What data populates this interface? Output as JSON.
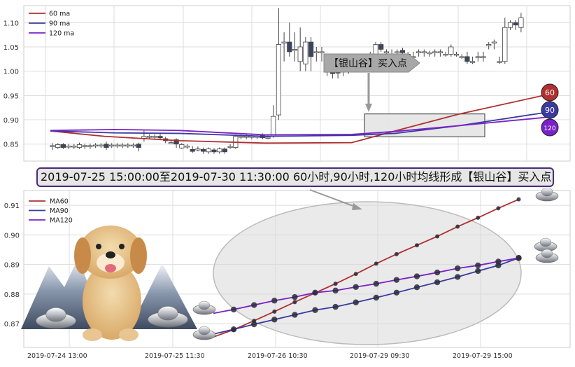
{
  "chart_data": [
    {
      "type": "candlestick",
      "title": "",
      "xlabel": "",
      "ylabel": "",
      "ylim": [
        0.815,
        1.135
      ],
      "yticks": [
        "0.85",
        "0.90",
        "0.95",
        "1.00",
        "1.05",
        "1.10"
      ],
      "grid": true,
      "legend_position": "top-left",
      "legend": [
        "60 ma",
        "90 ma",
        "120 ma"
      ],
      "colors": {
        "ma60": "#b03030",
        "ma90": "#3a3aa0",
        "ma120": "#7a22c8",
        "up_candle": "#ffffff",
        "down_candle": "#3a4660"
      },
      "candles": [
        {
          "o": 0.847,
          "c": 0.847,
          "h": 0.852,
          "l": 0.838,
          "dir": "flat"
        },
        {
          "o": 0.843,
          "c": 0.849,
          "h": 0.852,
          "l": 0.84,
          "dir": "up"
        },
        {
          "o": 0.849,
          "c": 0.843,
          "h": 0.852,
          "l": 0.84,
          "dir": "down"
        },
        {
          "o": 0.846,
          "c": 0.846,
          "h": 0.85,
          "l": 0.84,
          "dir": "flat"
        },
        {
          "o": 0.846,
          "c": 0.846,
          "h": 0.85,
          "l": 0.84,
          "dir": "flat"
        },
        {
          "o": 0.843,
          "c": 0.849,
          "h": 0.853,
          "l": 0.84,
          "dir": "up"
        },
        {
          "o": 0.847,
          "c": 0.847,
          "h": 0.851,
          "l": 0.84,
          "dir": "flat"
        },
        {
          "o": 0.847,
          "c": 0.847,
          "h": 0.851,
          "l": 0.84,
          "dir": "flat"
        },
        {
          "o": 0.848,
          "c": 0.848,
          "h": 0.852,
          "l": 0.842,
          "dir": "flat"
        },
        {
          "o": 0.848,
          "c": 0.848,
          "h": 0.852,
          "l": 0.842,
          "dir": "flat"
        },
        {
          "o": 0.85,
          "c": 0.843,
          "h": 0.855,
          "l": 0.838,
          "dir": "down"
        },
        {
          "o": 0.848,
          "c": 0.848,
          "h": 0.852,
          "l": 0.842,
          "dir": "flat"
        },
        {
          "o": 0.848,
          "c": 0.848,
          "h": 0.852,
          "l": 0.842,
          "dir": "flat"
        },
        {
          "o": 0.848,
          "c": 0.848,
          "h": 0.852,
          "l": 0.842,
          "dir": "flat"
        },
        {
          "o": 0.848,
          "c": 0.848,
          "h": 0.852,
          "l": 0.842,
          "dir": "flat"
        },
        {
          "o": 0.848,
          "c": 0.848,
          "h": 0.852,
          "l": 0.842,
          "dir": "flat"
        },
        {
          "o": 0.85,
          "c": 0.843,
          "h": 0.853,
          "l": 0.835,
          "dir": "down"
        },
        {
          "o": 0.862,
          "c": 0.866,
          "h": 0.878,
          "l": 0.855,
          "dir": "up"
        },
        {
          "o": 0.866,
          "c": 0.866,
          "h": 0.87,
          "l": 0.86,
          "dir": "flat"
        },
        {
          "o": 0.866,
          "c": 0.866,
          "h": 0.87,
          "l": 0.86,
          "dir": "flat"
        },
        {
          "o": 0.866,
          "c": 0.863,
          "h": 0.872,
          "l": 0.858,
          "dir": "down"
        },
        {
          "o": 0.861,
          "c": 0.857,
          "h": 0.865,
          "l": 0.852,
          "dir": "down"
        },
        {
          "o": 0.853,
          "c": 0.853,
          "h": 0.858,
          "l": 0.85,
          "dir": "flat"
        },
        {
          "o": 0.859,
          "c": 0.85,
          "h": 0.862,
          "l": 0.842,
          "dir": "down"
        },
        {
          "o": 0.842,
          "c": 0.849,
          "h": 0.852,
          "l": 0.84,
          "dir": "up"
        },
        {
          "o": 0.846,
          "c": 0.846,
          "h": 0.85,
          "l": 0.84,
          "dir": "flat"
        },
        {
          "o": 0.839,
          "c": 0.835,
          "h": 0.846,
          "l": 0.832,
          "dir": "down"
        },
        {
          "o": 0.84,
          "c": 0.84,
          "h": 0.845,
          "l": 0.835,
          "dir": "flat"
        },
        {
          "o": 0.839,
          "c": 0.835,
          "h": 0.843,
          "l": 0.83,
          "dir": "down"
        },
        {
          "o": 0.834,
          "c": 0.84,
          "h": 0.843,
          "l": 0.83,
          "dir": "up"
        },
        {
          "o": 0.838,
          "c": 0.834,
          "h": 0.842,
          "l": 0.83,
          "dir": "down"
        },
        {
          "o": 0.834,
          "c": 0.84,
          "h": 0.843,
          "l": 0.83,
          "dir": "up"
        },
        {
          "o": 0.84,
          "c": 0.834,
          "h": 0.843,
          "l": 0.83,
          "dir": "down"
        },
        {
          "o": 0.845,
          "c": 0.845,
          "h": 0.85,
          "l": 0.84,
          "dir": "flat"
        },
        {
          "o": 0.843,
          "c": 0.866,
          "h": 0.87,
          "l": 0.84,
          "dir": "up"
        },
        {
          "o": 0.866,
          "c": 0.866,
          "h": 0.87,
          "l": 0.86,
          "dir": "flat"
        },
        {
          "o": 0.866,
          "c": 0.866,
          "h": 0.87,
          "l": 0.86,
          "dir": "flat"
        },
        {
          "o": 0.866,
          "c": 0.866,
          "h": 0.87,
          "l": 0.86,
          "dir": "flat"
        },
        {
          "o": 0.866,
          "c": 0.866,
          "h": 0.87,
          "l": 0.86,
          "dir": "flat"
        },
        {
          "o": 0.868,
          "c": 0.863,
          "h": 0.872,
          "l": 0.86,
          "dir": "down"
        },
        {
          "o": 0.864,
          "c": 0.864,
          "h": 0.868,
          "l": 0.86,
          "dir": "flat"
        },
        {
          "o": 0.866,
          "c": 0.907,
          "h": 0.93,
          "l": 0.863,
          "dir": "up"
        },
        {
          "o": 0.91,
          "c": 1.055,
          "h": 1.13,
          "l": 0.9,
          "dir": "up"
        },
        {
          "o": 1.06,
          "c": 1.06,
          "h": 1.08,
          "l": 1.02,
          "dir": "flat"
        },
        {
          "o": 1.06,
          "c": 1.04,
          "h": 1.1,
          "l": 1.03,
          "dir": "down"
        },
        {
          "o": 1.045,
          "c": 1.045,
          "h": 1.08,
          "l": 1.02,
          "dir": "flat"
        },
        {
          "o": 1.02,
          "c": 1.05,
          "h": 1.09,
          "l": 1.0,
          "dir": "up"
        },
        {
          "o": 1.015,
          "c": 1.06,
          "h": 1.07,
          "l": 1.0,
          "dir": "up"
        },
        {
          "o": 1.06,
          "c": 1.03,
          "h": 1.07,
          "l": 1.0,
          "dir": "down"
        },
        {
          "o": 1.04,
          "c": 1.04,
          "h": 1.05,
          "l": 1.02,
          "dir": "flat"
        },
        {
          "o": 1.04,
          "c": 1.04,
          "h": 1.05,
          "l": 1.02,
          "dir": "flat"
        },
        {
          "o": 1.0,
          "c": 1.0,
          "h": 1.03,
          "l": 0.99,
          "dir": "flat"
        },
        {
          "o": 1.005,
          "c": 0.995,
          "h": 1.01,
          "l": 0.985,
          "dir": "down"
        },
        {
          "o": 0.996,
          "c": 1.003,
          "h": 1.01,
          "l": 0.985,
          "dir": "down"
        },
        {
          "o": 1.005,
          "c": 1.005,
          "h": 1.025,
          "l": 0.99,
          "dir": "flat"
        },
        {
          "o": 1.005,
          "c": 1.02,
          "h": 1.025,
          "l": 0.995,
          "dir": "up"
        },
        {
          "o": 1.02,
          "c": 1.025,
          "h": 1.03,
          "l": 1.01,
          "dir": "down"
        },
        {
          "o": 1.015,
          "c": 1.005,
          "h": 1.02,
          "l": 1.0,
          "dir": "down"
        },
        {
          "o": 1.01,
          "c": 1.01,
          "h": 1.02,
          "l": 1.0,
          "dir": "flat"
        },
        {
          "o": 1.03,
          "c": 1.03,
          "h": 1.04,
          "l": 1.02,
          "dir": "flat"
        },
        {
          "o": 1.015,
          "c": 1.055,
          "h": 1.06,
          "l": 1.01,
          "dir": "up"
        },
        {
          "o": 1.055,
          "c": 1.045,
          "h": 1.06,
          "l": 1.04,
          "dir": "down"
        },
        {
          "o": 1.04,
          "c": 1.04,
          "h": 1.045,
          "l": 1.03,
          "dir": "flat"
        },
        {
          "o": 1.035,
          "c": 1.035,
          "h": 1.045,
          "l": 1.03,
          "dir": "flat"
        },
        {
          "o": 1.04,
          "c": 1.04,
          "h": 1.045,
          "l": 1.03,
          "dir": "flat"
        },
        {
          "o": 1.043,
          "c": 1.038,
          "h": 1.048,
          "l": 1.03,
          "dir": "down"
        },
        {
          "o": 1.035,
          "c": 1.035,
          "h": 1.04,
          "l": 1.03,
          "dir": "flat"
        },
        {
          "o": 1.03,
          "c": 1.03,
          "h": 1.04,
          "l": 1.025,
          "dir": "flat"
        },
        {
          "o": 1.04,
          "c": 1.04,
          "h": 1.045,
          "l": 1.03,
          "dir": "flat"
        },
        {
          "o": 1.04,
          "c": 1.04,
          "h": 1.045,
          "l": 1.03,
          "dir": "flat"
        },
        {
          "o": 1.038,
          "c": 1.038,
          "h": 1.042,
          "l": 1.03,
          "dir": "flat"
        },
        {
          "o": 1.04,
          "c": 1.04,
          "h": 1.045,
          "l": 1.03,
          "dir": "flat"
        },
        {
          "o": 1.04,
          "c": 1.04,
          "h": 1.045,
          "l": 1.03,
          "dir": "flat"
        },
        {
          "o": 1.035,
          "c": 1.035,
          "h": 1.04,
          "l": 1.03,
          "dir": "flat"
        },
        {
          "o": 1.035,
          "c": 1.05,
          "h": 1.055,
          "l": 1.03,
          "dir": "up"
        },
        {
          "o": 1.035,
          "c": 1.035,
          "h": 1.04,
          "l": 1.03,
          "dir": "flat"
        },
        {
          "o": 1.03,
          "c": 1.03,
          "h": 1.035,
          "l": 1.025,
          "dir": "flat"
        },
        {
          "o": 1.02,
          "c": 1.03,
          "h": 1.04,
          "l": 1.015,
          "dir": "down"
        },
        {
          "o": 1.02,
          "c": 1.02,
          "h": 1.03,
          "l": 1.015,
          "dir": "flat"
        },
        {
          "o": 1.03,
          "c": 1.03,
          "h": 1.04,
          "l": 1.02,
          "dir": "flat"
        },
        {
          "o": 1.03,
          "c": 1.03,
          "h": 1.04,
          "l": 1.02,
          "dir": "flat"
        },
        {
          "o": 1.055,
          "c": 1.055,
          "h": 1.06,
          "l": 1.045,
          "dir": "flat"
        },
        {
          "o": 1.06,
          "c": 1.06,
          "h": 1.065,
          "l": 1.045,
          "dir": "flat"
        },
        {
          "o": 1.02,
          "c": 1.02,
          "h": 1.03,
          "l": 1.015,
          "dir": "flat"
        },
        {
          "o": 1.02,
          "c": 1.09,
          "h": 1.11,
          "l": 1.015,
          "dir": "up"
        },
        {
          "o": 1.09,
          "c": 1.1,
          "h": 1.105,
          "l": 1.085,
          "dir": "up"
        },
        {
          "o": 1.1,
          "c": 1.095,
          "h": 1.105,
          "l": 1.085,
          "dir": "down"
        },
        {
          "o": 1.09,
          "c": 1.11,
          "h": 1.12,
          "l": 1.08,
          "dir": "up"
        }
      ],
      "ma60": [
        [
          0,
          0.877
        ],
        [
          25,
          0.866
        ],
        [
          60,
          0.857
        ],
        [
          100,
          0.852
        ],
        [
          140,
          0.853
        ],
        [
          160,
          0.877
        ],
        [
          190,
          0.912
        ],
        [
          230,
          0.951
        ]
      ],
      "ma90": [
        [
          0,
          0.877
        ],
        [
          30,
          0.873
        ],
        [
          60,
          0.872
        ],
        [
          100,
          0.866
        ],
        [
          140,
          0.868
        ],
        [
          160,
          0.872
        ],
        [
          190,
          0.888
        ],
        [
          230,
          0.915
        ]
      ],
      "ma120": [
        [
          0,
          0.878
        ],
        [
          30,
          0.88
        ],
        [
          60,
          0.878
        ],
        [
          100,
          0.869
        ],
        [
          140,
          0.87
        ],
        [
          160,
          0.876
        ],
        [
          190,
          0.888
        ],
        [
          230,
          0.905
        ]
      ],
      "badges": [
        {
          "label": "60",
          "color": "#b03030"
        },
        {
          "label": "90",
          "color": "#3a3aa0"
        },
        {
          "label": "120",
          "color": "#7a22c8"
        }
      ],
      "annotation": "【银山谷】买入点"
    },
    {
      "type": "line",
      "title": "",
      "xlabel": "",
      "ylabel": "",
      "ylim": [
        0.862,
        0.915
      ],
      "yticks": [
        "0.87",
        "0.88",
        "0.89",
        "0.90",
        "0.91"
      ],
      "x_tick_labels": [
        "2019-07-24 13:00",
        "2019-07-25 11:30",
        "2019-07-26 10:30",
        "2019-07-29 09:30",
        "2019-07-29 15:00"
      ],
      "grid": true,
      "legend_position": "top-left",
      "colors": {
        "MA60": "#b03030",
        "MA90": "#3a3aa0",
        "MA120": "#7a22c8"
      },
      "series": [
        {
          "name": "MA60",
          "points": [
            [
              0,
              0.8655
            ],
            [
              1,
              0.868
            ],
            [
              2,
              0.871
            ],
            [
              3,
              0.8741
            ],
            [
              4,
              0.8773
            ],
            [
              5,
              0.8804
            ],
            [
              6,
              0.8835
            ],
            [
              7,
              0.8868
            ],
            [
              8,
              0.8903
            ],
            [
              9,
              0.8935
            ],
            [
              10,
              0.8965
            ],
            [
              11,
              0.8995
            ],
            [
              12,
              0.9028
            ],
            [
              13,
              0.9058
            ],
            [
              14,
              0.909
            ],
            [
              15,
              0.912
            ]
          ]
        },
        {
          "name": "MA90",
          "points": [
            [
              0,
              0.8665
            ],
            [
              1,
              0.8681
            ],
            [
              2,
              0.8698
            ],
            [
              3,
              0.8714
            ],
            [
              4,
              0.873
            ],
            [
              5,
              0.8746
            ],
            [
              6,
              0.8757
            ],
            [
              7,
              0.8772
            ],
            [
              8,
              0.8788
            ],
            [
              9,
              0.8805
            ],
            [
              10,
              0.8823
            ],
            [
              11,
              0.884
            ],
            [
              12,
              0.8858
            ],
            [
              13,
              0.8878
            ],
            [
              14,
              0.8897
            ],
            [
              15,
              0.8922
            ]
          ]
        },
        {
          "name": "MA120",
          "points": [
            [
              0,
              0.8735
            ],
            [
              1,
              0.8748
            ],
            [
              2,
              0.8763
            ],
            [
              3,
              0.8778
            ],
            [
              4,
              0.879
            ],
            [
              5,
              0.8805
            ],
            [
              6,
              0.8812
            ],
            [
              7,
              0.8824
            ],
            [
              8,
              0.8835
            ],
            [
              9,
              0.8848
            ],
            [
              10,
              0.886
            ],
            [
              11,
              0.8873
            ],
            [
              12,
              0.8887
            ],
            [
              13,
              0.8897
            ],
            [
              14,
              0.891
            ],
            [
              15,
              0.8922
            ]
          ]
        }
      ]
    }
  ],
  "banner_text": "2019-07-25 15:00:00至2019-07-30 11:30:00 60小时,90小时,120小时均线形成【银山谷】买入点"
}
